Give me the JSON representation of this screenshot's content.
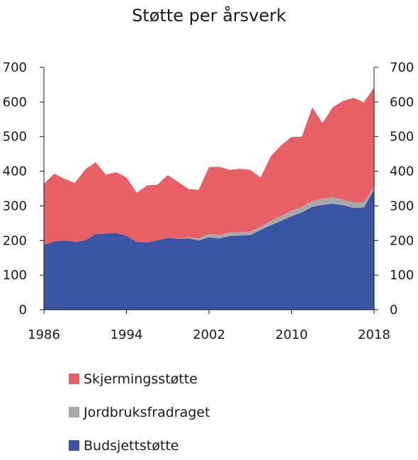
{
  "chart_data": {
    "type": "area",
    "stacked": true,
    "title": "Støtte per årsverk",
    "xlabel": "",
    "ylabel": "",
    "ylim": [
      0,
      700
    ],
    "yticks": [
      0,
      100,
      200,
      300,
      400,
      500,
      600,
      700
    ],
    "ytick_labels": [
      "0",
      "100",
      "200",
      "300",
      "400",
      "500",
      "600",
      "700"
    ],
    "xlim": [
      1986,
      2018
    ],
    "xticks": [
      1986,
      1994,
      2002,
      2010,
      2018
    ],
    "xtick_labels": [
      "1986",
      "1994",
      "2002",
      "2010",
      "2018"
    ],
    "dual_y_axis": true,
    "grid": false,
    "legend_position": "bottom",
    "x": [
      1986,
      1987,
      1988,
      1989,
      1990,
      1991,
      1992,
      1993,
      1994,
      1995,
      1996,
      1997,
      1998,
      1999,
      2000,
      2001,
      2002,
      2003,
      2004,
      2005,
      2006,
      2007,
      2008,
      2009,
      2010,
      2011,
      2012,
      2013,
      2014,
      2015,
      2016,
      2017,
      2018
    ],
    "series": [
      {
        "name": "Budsjettstøtte",
        "color": "#3a55a4",
        "values": [
          187,
          197,
          200,
          196,
          200,
          218,
          220,
          222,
          213,
          196,
          194,
          201,
          207,
          205,
          206,
          200,
          209,
          206,
          213,
          214,
          216,
          230,
          244,
          257,
          270,
          281,
          297,
          303,
          306,
          302,
          294,
          295,
          347
        ]
      },
      {
        "name": "Jordbruksfradraget",
        "color": "#a8a8a8",
        "values": [
          0,
          0,
          0,
          0,
          0,
          0,
          0,
          0,
          0,
          0,
          0,
          0,
          0,
          0,
          3,
          6,
          10,
          10,
          10,
          10,
          10,
          10,
          13,
          14,
          16,
          16,
          17,
          18,
          19,
          16,
          16,
          15,
          8
        ]
      },
      {
        "name": "Skjermingsstøtte",
        "color": "#e85f66",
        "values": [
          177,
          196,
          178,
          170,
          205,
          208,
          170,
          175,
          169,
          142,
          165,
          160,
          182,
          164,
          140,
          140,
          193,
          197,
          181,
          183,
          178,
          142,
          187,
          204,
          213,
          203,
          270,
          218,
          260,
          285,
          302,
          289,
          287
        ]
      }
    ],
    "legend": [
      "Skjermingsstøtte",
      "Jordbruksfradraget",
      "Budsjettstøtte"
    ]
  }
}
